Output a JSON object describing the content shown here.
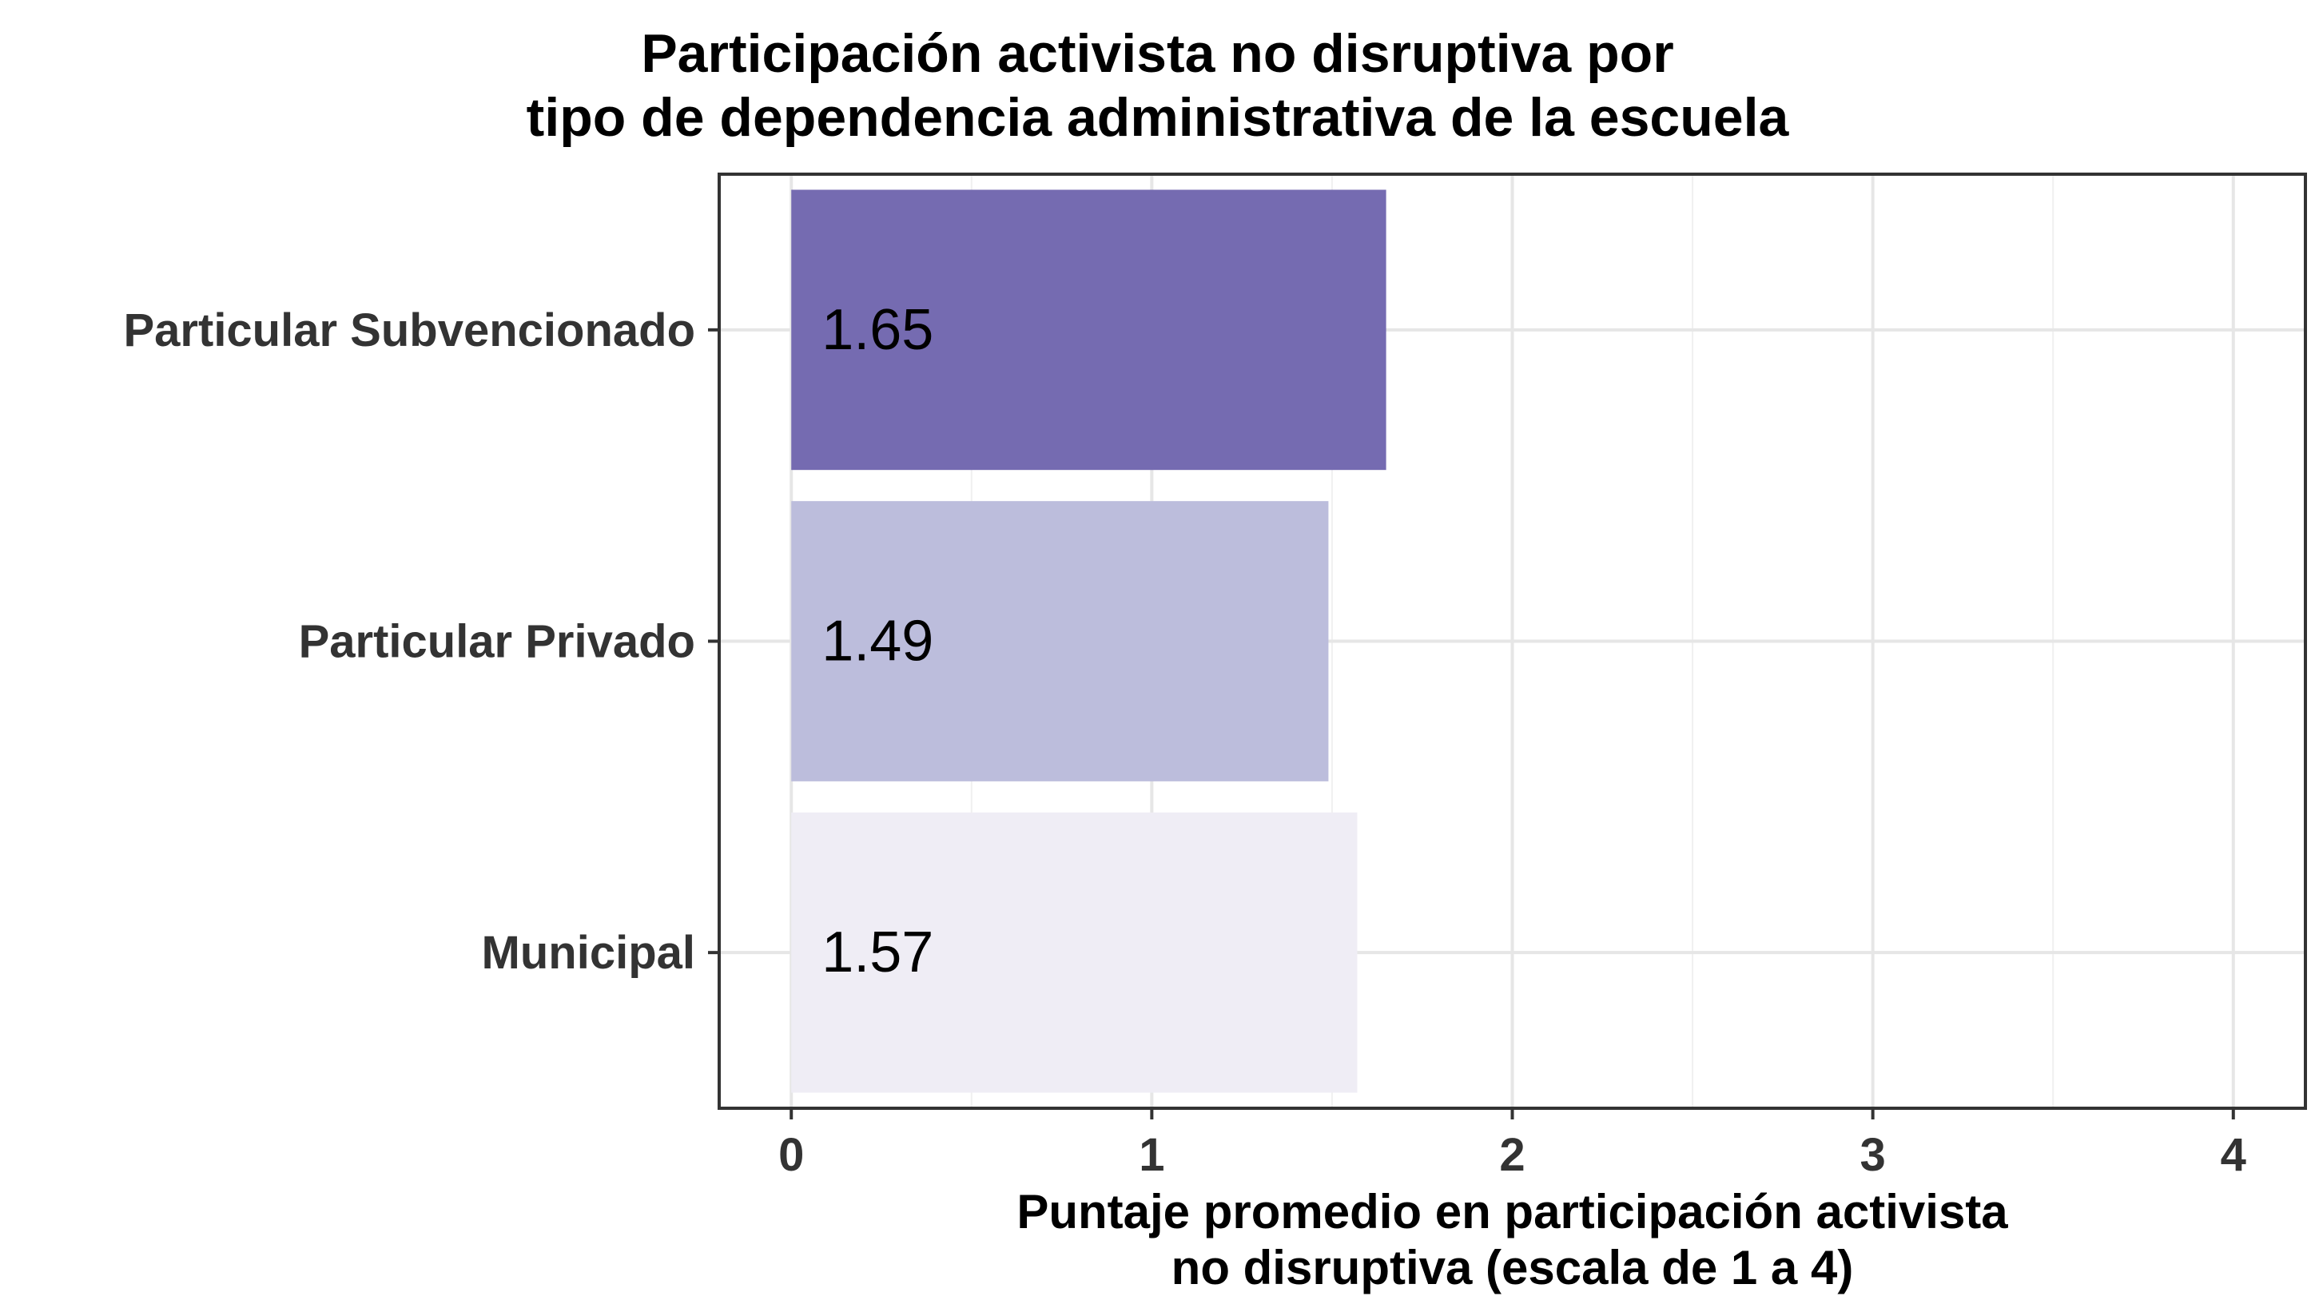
{
  "chart_data": {
    "type": "bar",
    "orientation": "horizontal",
    "title": [
      "Participación activista no disruptiva por",
      "tipo de dependencia administrativa de la escuela"
    ],
    "categories": [
      "Particular Subvencionado",
      "Particular Privado",
      "Municipal"
    ],
    "values": [
      1.65,
      1.49,
      1.57
    ],
    "value_labels": [
      "1.65",
      "1.49",
      "1.57"
    ],
    "colors": [
      "#756bb1",
      "#bcbddc",
      "#efedf5"
    ],
    "xlabel": [
      "Puntaje promedio en participación activista",
      "no disruptiva (escala de 1 a 4)"
    ],
    "xlim": [
      -0.2,
      4.2
    ],
    "xticks": [
      0,
      1,
      2,
      3,
      4
    ],
    "xtick_labels": [
      "0",
      "1",
      "2",
      "3",
      "4"
    ],
    "grid": true,
    "legend": "none"
  }
}
